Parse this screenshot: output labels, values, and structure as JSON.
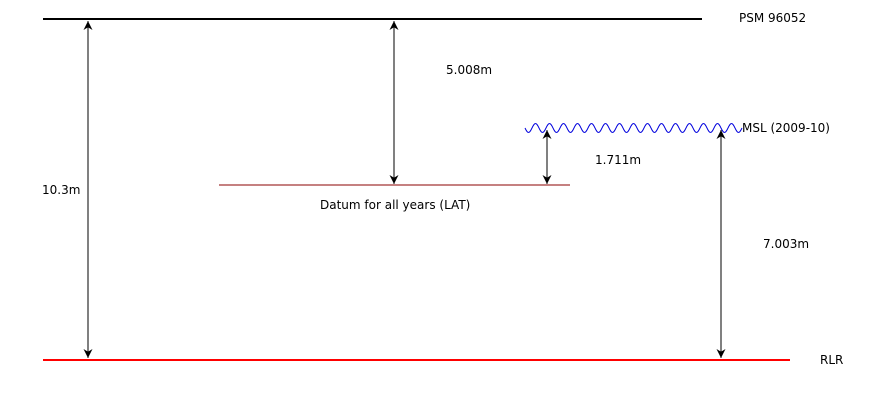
{
  "diagram": {
    "levels": {
      "psm": "PSM 96052",
      "msl": "MSL (2009-10)",
      "datum": "Datum for all years (LAT)",
      "rlr": "RLR"
    },
    "dimensions": {
      "psm_to_rlr": "10.3m",
      "psm_to_datum": "5.008m",
      "msl_to_datum": "1.711m",
      "msl_to_rlr": "7.003m"
    },
    "colors": {
      "psm_line": "#000000",
      "datum_line": "#8b0000",
      "msl_wave": "#0000dd",
      "rlr_line": "#ff0000",
      "dimension_arrows": "#000000"
    }
  }
}
